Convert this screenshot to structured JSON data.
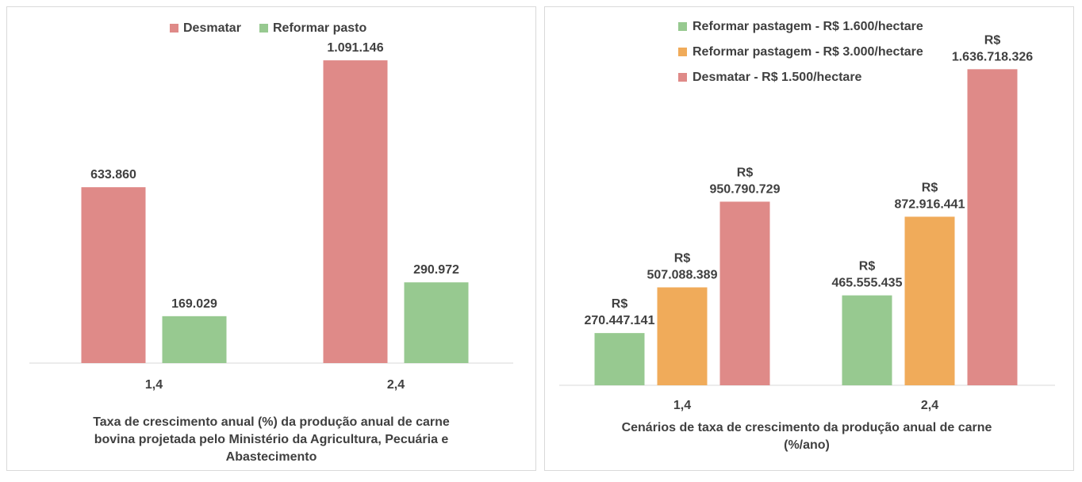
{
  "chart_data": [
    {
      "type": "bar",
      "categories": [
        "1,4",
        "2,4"
      ],
      "series": [
        {
          "name": "Desmatar",
          "color": "#df8a88",
          "values": [
            633860,
            1091146
          ],
          "labels": [
            "633.860",
            "1.091.146"
          ]
        },
        {
          "name": "Reformar pasto",
          "color": "#97c990",
          "values": [
            169029,
            290972
          ],
          "labels": [
            "169.029",
            "290.972"
          ]
        }
      ],
      "title": "",
      "xlabel": "Taxa de crescimento anual (%) da produção anual de carne bovina projetada pelo Ministério da Agricultura, Pecuária e Abastecimento",
      "xlabel_lines": [
        "Taxa de crescimento anual (%) da produção anual de carne",
        "bovina projetada pelo Ministério da Agricultura, Pecuária e",
        "Abastecimento"
      ],
      "ylabel": "",
      "ylim": [
        0,
        1200000
      ],
      "grid": false,
      "legend_position": "top"
    },
    {
      "type": "bar",
      "categories": [
        "1,4",
        "2,4"
      ],
      "series": [
        {
          "name": "Reformar pastagem - R$ 1.600/hectare",
          "color": "#97c990",
          "values": [
            270447141,
            465555435
          ],
          "labels": [
            "270.447.141",
            "465.555.435"
          ]
        },
        {
          "name": "Reformar pastagem - R$ 3.000/hectare",
          "color": "#f0ab5a",
          "values": [
            507088389,
            872916441
          ],
          "labels": [
            "507.088.389",
            "872.916.441"
          ]
        },
        {
          "name": "Desmatar - R$ 1.500/hectare",
          "color": "#df8a88",
          "values": [
            950790729,
            1636718326
          ],
          "labels": [
            "950.790.729",
            "1.636.718.326"
          ]
        }
      ],
      "label_prefix": "R$",
      "title": "",
      "xlabel": "Cenários de taxa de crescimento da produção anual de carne (%/ano)",
      "xlabel_lines": [
        "Cenários de taxa de crescimento da produção anual de carne",
        "(%/ano)"
      ],
      "ylabel": "",
      "ylim": [
        0,
        1950000000
      ],
      "grid": false,
      "legend_position": "top"
    }
  ]
}
